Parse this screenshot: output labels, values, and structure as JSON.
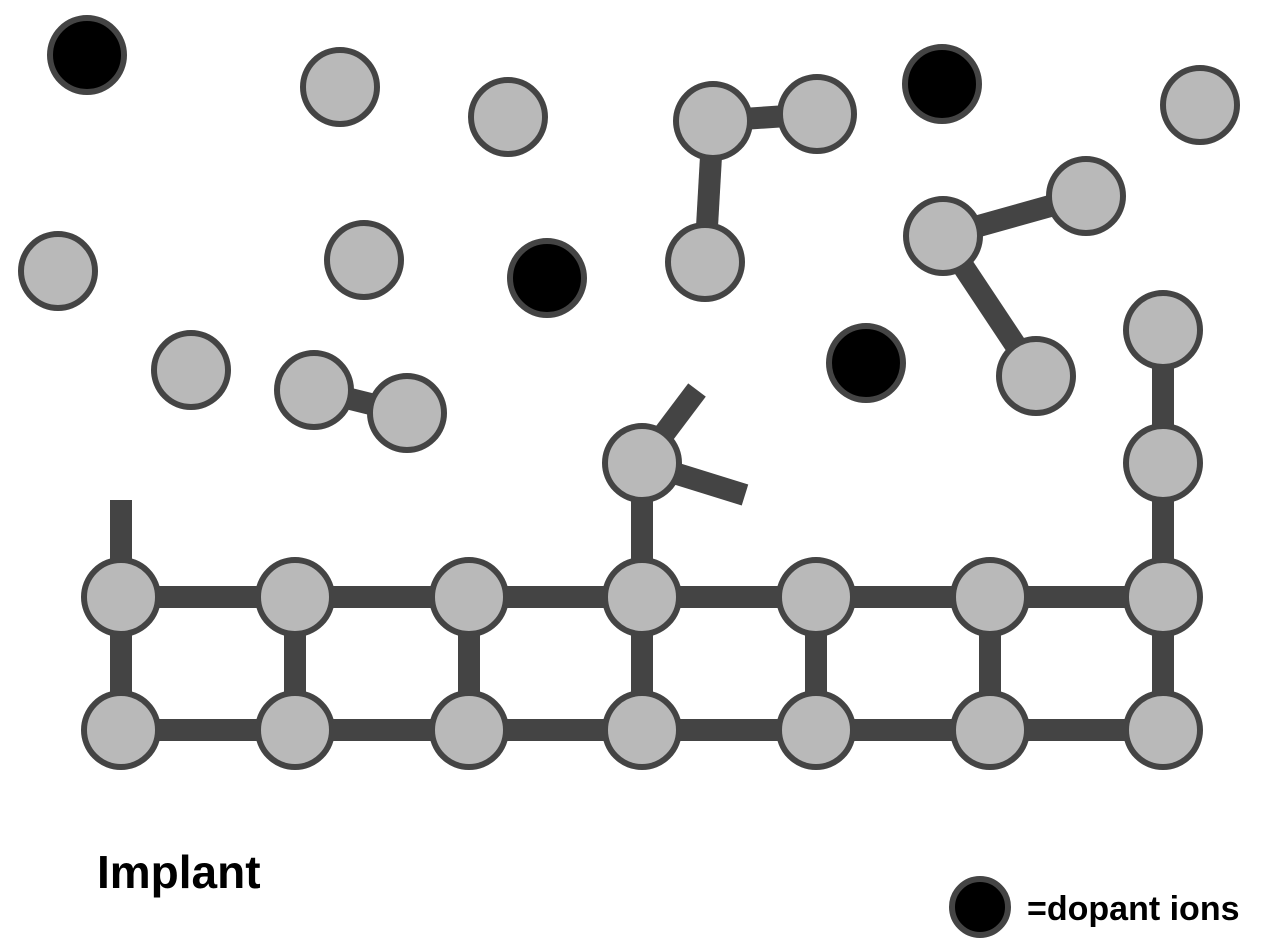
{
  "title": "Implant",
  "legend": {
    "label": "=dopant ions"
  },
  "colors": {
    "atom_fill": "#b9b9b9",
    "atom_stroke": "#444444",
    "bond": "#444444",
    "dopant_fill": "#000000",
    "dopant_stroke": "#444444",
    "background": "#ffffff"
  }
}
